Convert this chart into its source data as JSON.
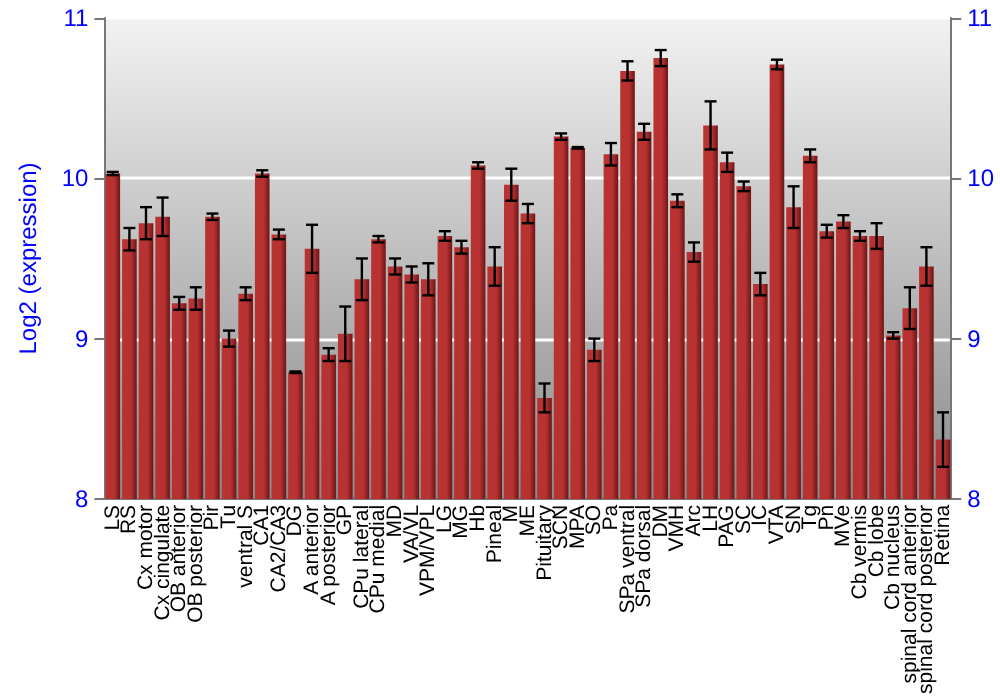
{
  "chart_data": {
    "type": "bar",
    "ylabel": "Log2 (expression)",
    "categories": [
      "LS",
      "RS",
      "Cx motor",
      "Cx cingulate",
      "OB anterior",
      "OB posterior",
      "Pir",
      "Tu",
      "ventral S",
      "CA1",
      "CA2/CA3",
      "DG",
      "A anterior",
      "A posterior",
      "GP",
      "CPu lateral",
      "CPu medial",
      "MD",
      "VA/VL",
      "VPM/VPL",
      "LG",
      "MG",
      "Hb",
      "Pineal",
      "M",
      "ME",
      "Pituitary",
      "SCN",
      "MPA",
      "SO",
      "Pa",
      "SPa ventral",
      "SPa dorsal",
      "DM",
      "VMH",
      "Arc",
      "LH",
      "PAG",
      "SC",
      "IC",
      "VTA",
      "SN",
      "Tg",
      "Pn",
      "MVe",
      "Cb vermis",
      "Cb lobe",
      "Cb nucleus",
      "spinal cord anterior",
      "spinal cord posterior",
      "Retina"
    ],
    "values": [
      10.03,
      9.62,
      9.72,
      9.76,
      9.22,
      9.25,
      9.76,
      9.0,
      9.28,
      10.03,
      9.65,
      8.79,
      9.56,
      8.9,
      9.03,
      9.37,
      9.62,
      9.45,
      9.4,
      9.37,
      9.64,
      9.57,
      10.08,
      9.45,
      9.96,
      9.78,
      8.63,
      10.26,
      10.19,
      8.93,
      10.15,
      10.67,
      10.29,
      10.75,
      9.86,
      9.54,
      10.33,
      10.1,
      9.95,
      9.34,
      10.71,
      9.82,
      10.14,
      9.67,
      9.73,
      9.64,
      9.64,
      9.02,
      9.19,
      9.45,
      8.37
    ],
    "errors": [
      0.01,
      0.07,
      0.1,
      0.12,
      0.04,
      0.07,
      0.02,
      0.05,
      0.04,
      0.02,
      0.03,
      0.005,
      0.15,
      0.04,
      0.17,
      0.13,
      0.02,
      0.05,
      0.05,
      0.1,
      0.03,
      0.04,
      0.02,
      0.12,
      0.1,
      0.06,
      0.09,
      0.02,
      0.005,
      0.07,
      0.07,
      0.06,
      0.05,
      0.05,
      0.04,
      0.06,
      0.15,
      0.06,
      0.03,
      0.07,
      0.03,
      0.13,
      0.04,
      0.04,
      0.04,
      0.03,
      0.08,
      0.02,
      0.13,
      0.12,
      0.17
    ],
    "color": "#b83232",
    "ylim": [
      8,
      11
    ],
    "yticks": [
      8,
      9,
      10,
      11
    ],
    "y2lim": [
      8,
      11
    ],
    "y2ticks": [
      8,
      9,
      10,
      11
    ],
    "grid": "y"
  }
}
